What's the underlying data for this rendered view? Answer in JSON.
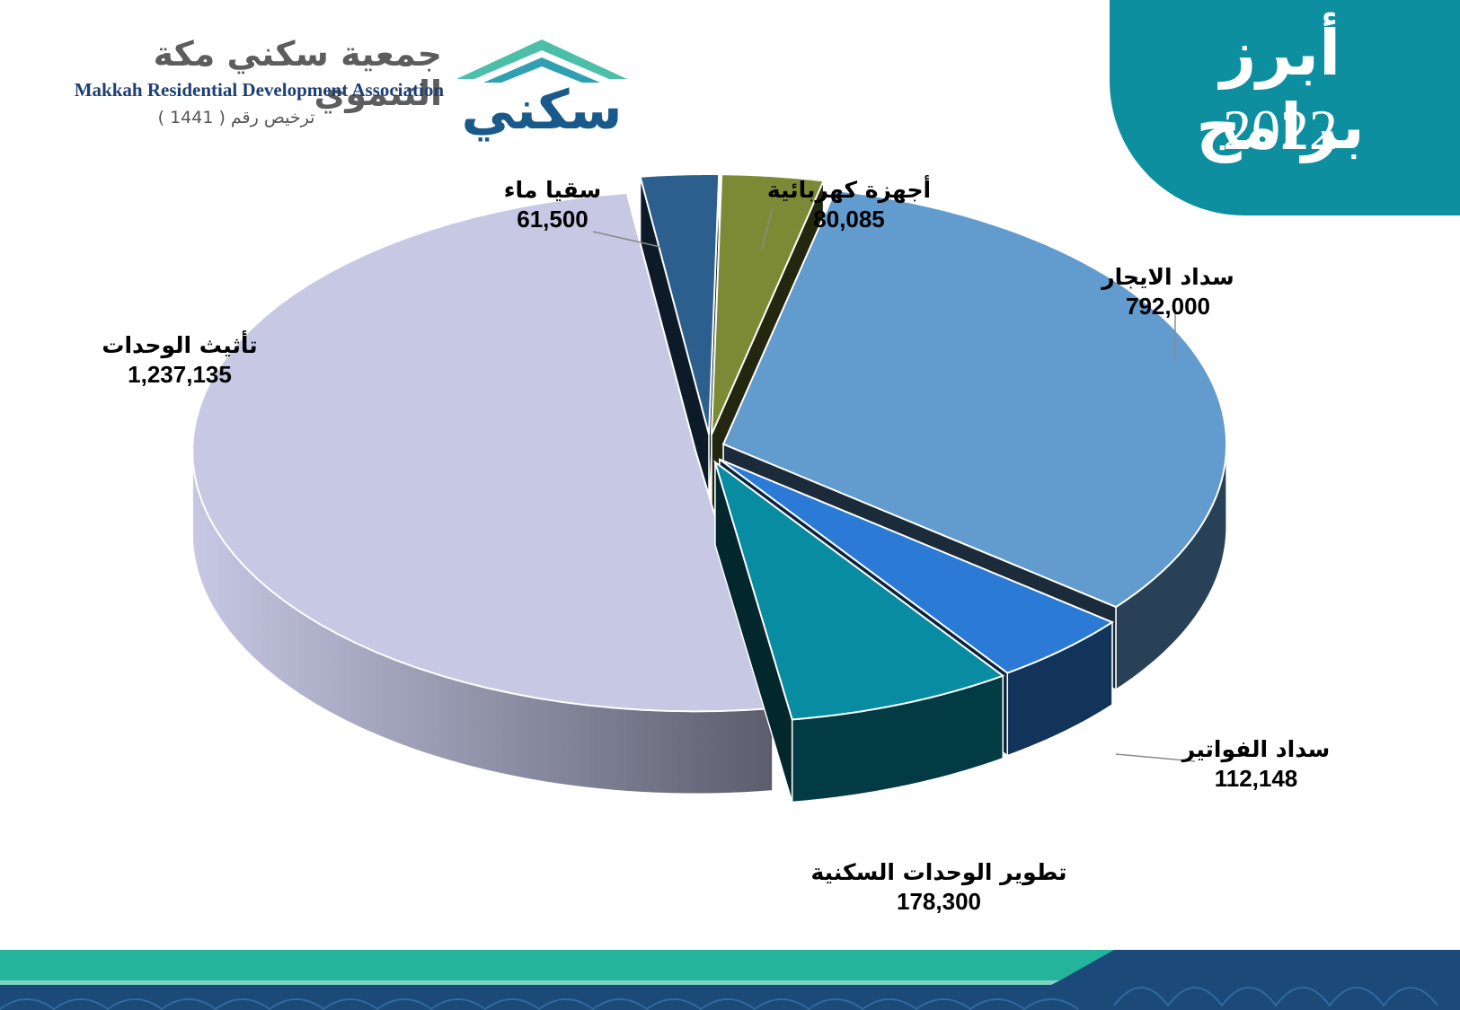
{
  "header": {
    "title": "أبرز برامج",
    "year": "2022"
  },
  "logo": {
    "arabic_name": "جمعية سكني مكة التنموي",
    "english_name": "Makkah Residential Development Association",
    "license": "ترخيص رقم ( 1441 )",
    "brand": "سكني"
  },
  "colors": {
    "panel": "#0e8fa0",
    "footer_teal": "#24b39b",
    "footer_navy": "#1b4a78"
  },
  "chart_data": {
    "type": "pie",
    "style": "3d-exploded",
    "categories": [
      "أجهزة كهربائية",
      "سداد الايجار",
      "سداد الفواتير",
      "تطوير الوحدات السكنية",
      "تأثيث الوحدات",
      "سقيا ماء"
    ],
    "values": [
      80085,
      792000,
      112148,
      178300,
      1237135,
      61500
    ],
    "value_labels": [
      "80,085",
      "792,000",
      "112,148",
      "178,300",
      "1,237,135",
      "61,500"
    ],
    "colors": [
      "#7d8a35",
      "#629bcd",
      "#2a7ad6",
      "#078ca2",
      "#c6c8e4",
      "#2c5f8d"
    ],
    "legend": "none",
    "data_labels": "outside-with-leaders"
  }
}
